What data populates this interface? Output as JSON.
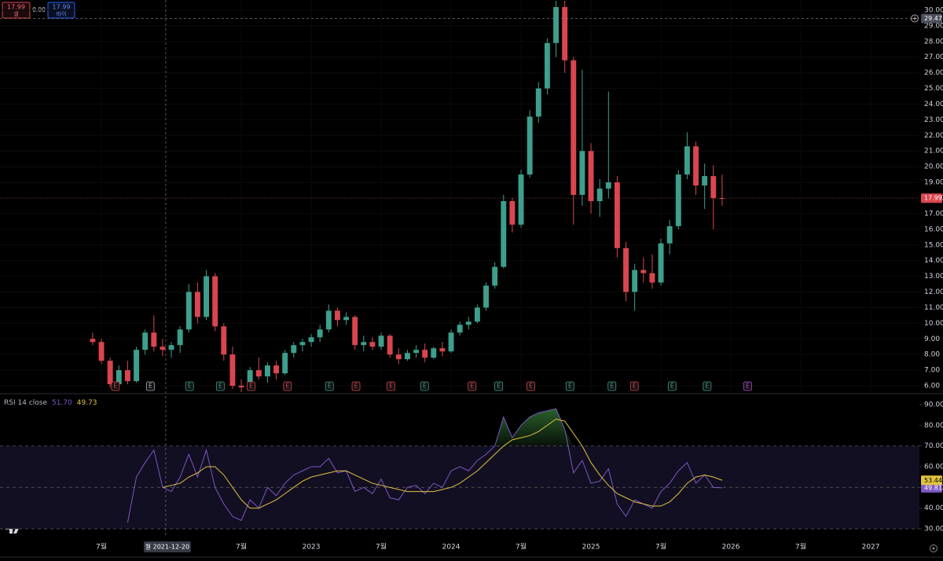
{
  "order_widget": {
    "sell_price": 17.99,
    "sell_label": "셀",
    "spread": {
      "value": 0,
      "label": "0.00"
    },
    "buy_price": 17.99,
    "buy_label": "바이"
  },
  "chart_data": [
    {
      "type": "candlestick",
      "up_color": "#3d9f8c",
      "down_color": "#d9464f",
      "xlim": [
        2020.775,
        2027.348
      ],
      "ylim": [
        5.55,
        30.65
      ],
      "xticks": [
        {
          "value": 2021.5,
          "label": "7월"
        },
        {
          "value": 2022.5,
          "label": "7월"
        },
        2023,
        {
          "value": 2023.5,
          "label": "7월"
        },
        2024,
        {
          "value": 2024.5,
          "label": "7월"
        },
        2025,
        {
          "value": 2025.5,
          "label": "7월"
        },
        2026,
        {
          "value": 2026.5,
          "label": "7월"
        },
        2027
      ],
      "yticks": [
        {
          "value": 6,
          "label": "6.00"
        },
        {
          "value": 7,
          "label": "7.00"
        },
        {
          "value": 8,
          "label": "8.00"
        },
        {
          "value": 9,
          "label": "9.00"
        },
        {
          "value": 10,
          "label": "10.00"
        },
        {
          "value": 11,
          "label": "11.00"
        },
        {
          "value": 12,
          "label": "12.00"
        },
        {
          "value": 13,
          "label": "13.00"
        },
        {
          "value": 14,
          "label": "14.00"
        },
        {
          "value": 15,
          "label": "15.00"
        },
        {
          "value": 16,
          "label": "16.00"
        },
        {
          "value": 17,
          "label": "17.00"
        },
        {
          "value": 18,
          "label": "18.00"
        },
        {
          "value": 19,
          "label": "19.00"
        },
        {
          "value": 20,
          "label": "20.00"
        },
        {
          "value": 21,
          "label": "21.00"
        },
        {
          "value": 22,
          "label": "22.00"
        },
        {
          "value": 23,
          "label": "23.00"
        },
        {
          "value": 24,
          "label": "24.00"
        },
        {
          "value": 25,
          "label": "25.00"
        },
        {
          "value": 26,
          "label": "26.00"
        },
        {
          "value": 27,
          "label": "27.00"
        },
        {
          "value": 28,
          "label": "28.00"
        },
        {
          "value": 29,
          "label": "29.00"
        },
        {
          "value": 30,
          "label": "30.00"
        }
      ],
      "grid": true,
      "x": [
        2021.4375,
        2021.5,
        2021.5625,
        2021.625,
        2021.6875,
        2021.75,
        2021.8125,
        2021.875,
        2021.9375,
        2022.0,
        2022.0625,
        2022.125,
        2022.1875,
        2022.25,
        2022.3125,
        2022.375,
        2022.4375,
        2022.5,
        2022.5625,
        2022.625,
        2022.6875,
        2022.75,
        2022.8125,
        2022.875,
        2022.9375,
        2023.0,
        2023.0625,
        2023.125,
        2023.1875,
        2023.25,
        2023.3125,
        2023.375,
        2023.4375,
        2023.5,
        2023.5625,
        2023.625,
        2023.6875,
        2023.75,
        2023.8125,
        2023.875,
        2023.9375,
        2024.0,
        2024.0625,
        2024.125,
        2024.1875,
        2024.25,
        2024.3125,
        2024.375,
        2024.4375,
        2024.5,
        2024.5625,
        2024.625,
        2024.6875,
        2024.75,
        2024.8125,
        2024.875,
        2024.9375,
        2025.0,
        2025.0625,
        2025.125,
        2025.1875,
        2025.25,
        2025.3125,
        2025.375,
        2025.4375,
        2025.5,
        2025.5625,
        2025.625,
        2025.6875,
        2025.75,
        2025.8125,
        2025.875,
        2025.9375
      ],
      "open": [
        9.0,
        8.8,
        7.6,
        6.1,
        7.0,
        6.3,
        8.3,
        9.4,
        8.5,
        8.3,
        8.6,
        9.6,
        12.0,
        10.4,
        13.0,
        9.8,
        8.0,
        6.0,
        5.9,
        7.0,
        6.6,
        7.3,
        6.8,
        8.1,
        8.6,
        8.8,
        9.1,
        9.6,
        10.8,
        10.2,
        10.4,
        8.6,
        8.8,
        8.5,
        9.2,
        8.0,
        7.7,
        8.1,
        8.3,
        7.8,
        8.4,
        8.2,
        9.4,
        9.9,
        10.1,
        11.0,
        12.4,
        13.6,
        17.8,
        16.3,
        19.5,
        23.2,
        25.0,
        27.9,
        30.2,
        26.8,
        18.2,
        21.0,
        17.8,
        18.6,
        19.0,
        14.8,
        12.0,
        13.4,
        13.2,
        12.6,
        15.1,
        16.2,
        19.5,
        21.3,
        18.8,
        19.4,
        18.0
      ],
      "high": [
        9.4,
        9.0,
        7.8,
        7.3,
        7.6,
        8.5,
        9.6,
        10.5,
        9.0,
        8.8,
        9.8,
        12.5,
        12.6,
        13.4,
        13.2,
        10.0,
        8.5,
        6.4,
        7.2,
        7.8,
        7.5,
        7.6,
        8.3,
        8.8,
        9.0,
        9.3,
        9.9,
        11.2,
        11.0,
        10.7,
        10.5,
        9.2,
        9.1,
        9.4,
        9.3,
        8.4,
        8.3,
        8.6,
        8.7,
        8.5,
        8.8,
        9.6,
        10.1,
        10.4,
        11.2,
        12.6,
        13.9,
        18.2,
        18.0,
        19.8,
        23.6,
        25.4,
        28.2,
        30.6,
        30.6,
        27.0,
        26.2,
        21.5,
        19.2,
        24.8,
        19.4,
        15.2,
        13.8,
        14.2,
        14.4,
        15.4,
        16.6,
        19.8,
        22.2,
        21.6,
        20.2,
        20.1,
        19.5
      ],
      "low": [
        8.6,
        7.4,
        5.9,
        6.0,
        6.1,
        6.2,
        8.0,
        8.2,
        7.9,
        7.8,
        8.1,
        9.4,
        10.0,
        10.2,
        9.5,
        7.6,
        5.8,
        5.6,
        5.8,
        6.4,
        6.2,
        6.4,
        6.7,
        7.8,
        8.2,
        8.5,
        8.8,
        9.4,
        9.8,
        9.9,
        8.3,
        8.2,
        8.3,
        8.3,
        7.8,
        7.4,
        7.6,
        7.8,
        7.5,
        7.7,
        7.9,
        8.1,
        9.2,
        9.6,
        10.0,
        10.8,
        12.2,
        13.5,
        15.8,
        16.1,
        19.3,
        22.8,
        24.6,
        27.0,
        26.0,
        16.3,
        17.5,
        17.0,
        16.8,
        18.0,
        14.2,
        11.4,
        10.8,
        12.6,
        12.2,
        12.4,
        14.4,
        16.0,
        19.2,
        18.2,
        17.3,
        16.0,
        17.5
      ],
      "close": [
        8.8,
        7.6,
        6.1,
        7.0,
        6.3,
        8.3,
        9.4,
        8.5,
        8.3,
        8.6,
        9.6,
        12.0,
        10.4,
        13.0,
        9.8,
        8.0,
        6.0,
        5.9,
        7.0,
        6.6,
        7.3,
        6.8,
        8.1,
        8.6,
        8.8,
        9.1,
        9.6,
        10.8,
        10.2,
        10.4,
        8.6,
        8.8,
        8.5,
        9.2,
        8.0,
        7.7,
        8.1,
        8.3,
        7.8,
        8.4,
        8.2,
        9.4,
        9.9,
        10.1,
        11.0,
        12.4,
        13.6,
        17.8,
        16.3,
        19.5,
        23.2,
        25.0,
        27.9,
        30.2,
        26.8,
        18.2,
        21.0,
        17.8,
        18.6,
        19.0,
        14.8,
        12.0,
        13.4,
        13.2,
        12.6,
        15.1,
        16.2,
        19.5,
        21.3,
        18.8,
        19.4,
        18.0,
        17.99
      ],
      "events": [
        {
          "x": 2021.6,
          "label": "E",
          "color": "#d9464f"
        },
        {
          "x": 2021.85,
          "label": "E",
          "color": "#b2b5be"
        },
        {
          "x": 2022.13,
          "label": "E",
          "color": "#3d9f8c"
        },
        {
          "x": 2022.35,
          "label": "E",
          "color": "#3d9f8c"
        },
        {
          "x": 2022.57,
          "label": "E",
          "color": "#d9464f"
        },
        {
          "x": 2022.83,
          "label": "E",
          "color": "#d9464f"
        },
        {
          "x": 2023.13,
          "label": "E",
          "color": "#3d9f8c"
        },
        {
          "x": 2023.32,
          "label": "E",
          "color": "#d9464f"
        },
        {
          "x": 2023.57,
          "label": "E",
          "color": "#d9464f"
        },
        {
          "x": 2023.81,
          "label": "E",
          "color": "#3d9f8c"
        },
        {
          "x": 2024.15,
          "label": "E",
          "color": "#d9464f"
        },
        {
          "x": 2024.34,
          "label": "E",
          "color": "#3d9f8c"
        },
        {
          "x": 2024.57,
          "label": "E",
          "color": "#d9464f"
        },
        {
          "x": 2024.85,
          "label": "E",
          "color": "#3d9f8c"
        },
        {
          "x": 2025.15,
          "label": "E",
          "color": "#3d9f8c"
        },
        {
          "x": 2025.31,
          "label": "E",
          "color": "#d9464f"
        },
        {
          "x": 2025.58,
          "label": "E",
          "color": "#3d9f8c"
        },
        {
          "x": 2025.83,
          "label": "E",
          "color": "#3d9f8c"
        },
        {
          "x": 2026.12,
          "label": "E",
          "color": "#b04bd6"
        }
      ],
      "crosshair": {
        "x": 2021.96,
        "price": 29.47,
        "date_label": "월 2021-12-20"
      }
    },
    {
      "type": "line",
      "title": "RSI 14 close",
      "legend_values": [
        {
          "value": 51.7,
          "label": "51.70"
        },
        49.73
      ],
      "ylim": [
        26.6,
        94.9
      ],
      "yticks": [
        {
          "value": 30,
          "label": "30.00"
        },
        {
          "value": 40,
          "label": "40.00"
        },
        {
          "value": 50,
          "label": "50.00"
        },
        {
          "value": 60,
          "label": "60.00"
        },
        {
          "value": 70,
          "label": "70.00"
        },
        {
          "value": 80,
          "label": "80.00"
        },
        {
          "value": 90,
          "label": "90.00"
        }
      ],
      "levels": [
        30,
        50,
        70
      ],
      "series": [
        {
          "color": "#7e57c2",
          "values": [
            null,
            null,
            null,
            null,
            33,
            55,
            62,
            68,
            50,
            48,
            55,
            66,
            55,
            68,
            50,
            42,
            36,
            34,
            44,
            40,
            50,
            46,
            52,
            56,
            58,
            60,
            60,
            64,
            57,
            58,
            48,
            50,
            47,
            54,
            45,
            44,
            50,
            51,
            47,
            52,
            50,
            58,
            60,
            58,
            63,
            66,
            70,
            84,
            74,
            80,
            84,
            86,
            87,
            88,
            78,
            57,
            63,
            52,
            53,
            59,
            42,
            36,
            44,
            42,
            40,
            48,
            52,
            58,
            62,
            52,
            56,
            50,
            49.81
          ]
        },
        {
          "color": "#e2c340",
          "values": [
            null,
            null,
            null,
            null,
            null,
            null,
            null,
            null,
            50,
            51,
            52,
            55,
            57,
            60,
            60,
            56,
            50,
            44,
            40,
            40,
            42,
            44,
            47,
            50,
            53,
            55,
            56,
            57,
            58,
            58,
            56,
            54,
            52,
            51,
            50,
            49,
            48,
            48,
            48,
            48,
            49,
            50,
            52,
            55,
            58,
            62,
            66,
            70,
            73,
            74,
            75,
            77,
            80,
            83,
            82,
            76,
            70,
            62,
            56,
            51,
            47,
            45,
            43,
            42,
            41,
            41,
            43,
            47,
            52,
            55,
            56,
            55,
            53.44
          ]
        }
      ]
    }
  ]
}
